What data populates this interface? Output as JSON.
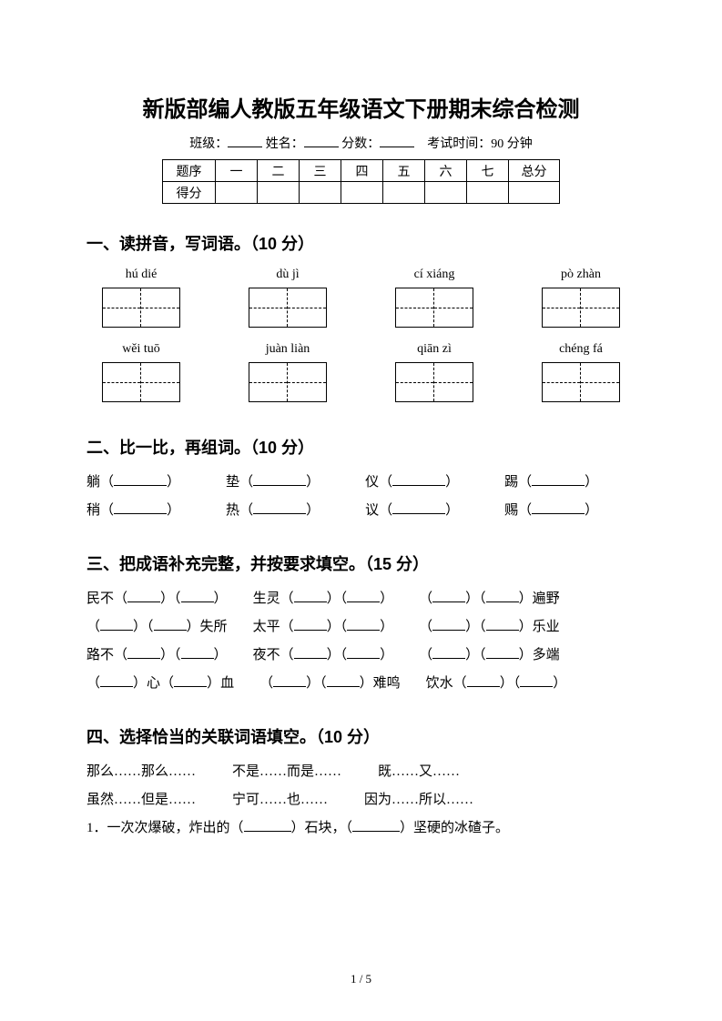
{
  "title": "新版部编人教版五年级语文下册期末综合检测",
  "info": {
    "class_label": "班级：",
    "name_label": "姓名：",
    "score_label": "分数：",
    "time_label": "考试时间：90 分钟"
  },
  "score_table": {
    "row1": [
      "题序",
      "一",
      "二",
      "三",
      "四",
      "五",
      "六",
      "七",
      "总分"
    ],
    "row2_label": "得分"
  },
  "section1": {
    "heading": "一、读拼音，写词语。（10 分）",
    "row1": [
      "hú dié",
      "dù jì",
      "cí xiáng",
      "pò zhàn"
    ],
    "row2": [
      "wěi tuō",
      "juàn liàn",
      "qiān zì",
      "chéng fá"
    ]
  },
  "section2": {
    "heading": "二、比一比，再组词。（10 分）",
    "pairs_top": [
      "躺",
      "垫",
      "仪",
      "踢"
    ],
    "pairs_bottom": [
      "稍",
      "热",
      "议",
      "赐"
    ]
  },
  "section3": {
    "heading": "三、把成语补充完整，并按要求填空。（15 分）",
    "rows": [
      [
        {
          "pre": "民不",
          "b": 2
        },
        {
          "pre": "生灵",
          "b": 2
        },
        {
          "pre": "",
          "b": 2,
          "post": "遍野"
        }
      ],
      [
        {
          "pre": "",
          "b": 2,
          "post": "失所"
        },
        {
          "pre": "太平",
          "b": 2
        },
        {
          "pre": "",
          "b": 2,
          "post": "乐业"
        }
      ],
      [
        {
          "pre": "路不",
          "b": 2
        },
        {
          "pre": "夜不",
          "b": 2
        },
        {
          "pre": "",
          "b": 2,
          "post": "多端"
        }
      ],
      [
        {
          "pre": "",
          "mid": "心",
          "b": 1,
          "post": "血",
          "b2": 1
        },
        {
          "pre": "",
          "b": 2,
          "post": "难鸣"
        },
        {
          "pre": "饮水",
          "b": 2
        }
      ]
    ],
    "line1": {
      "a": "民不",
      "b": "生灵",
      "c_suf": "遍野"
    },
    "line2": {
      "a_suf": "失所",
      "b": "太平",
      "c_suf": "乐业"
    },
    "line3": {
      "a": "路不",
      "b": "夜不",
      "c_suf": "多端"
    },
    "line4": {
      "a_mid": "心",
      "a_suf": "血",
      "b_suf": "难鸣",
      "c": "饮水"
    }
  },
  "section4": {
    "heading": "四、选择恰当的关联词语填空。（10 分）",
    "row1": [
      "那么……那么……",
      "不是……而是……",
      "既……又……"
    ],
    "row2": [
      "虽然……但是……",
      "宁可……也……",
      "因为……所以……"
    ],
    "q1_pre": "1．一次次爆破，炸出的（",
    "q1_mid": "）石块，（",
    "q1_suf": "）坚硬的冰碴子。"
  },
  "page_number": "1 / 5"
}
